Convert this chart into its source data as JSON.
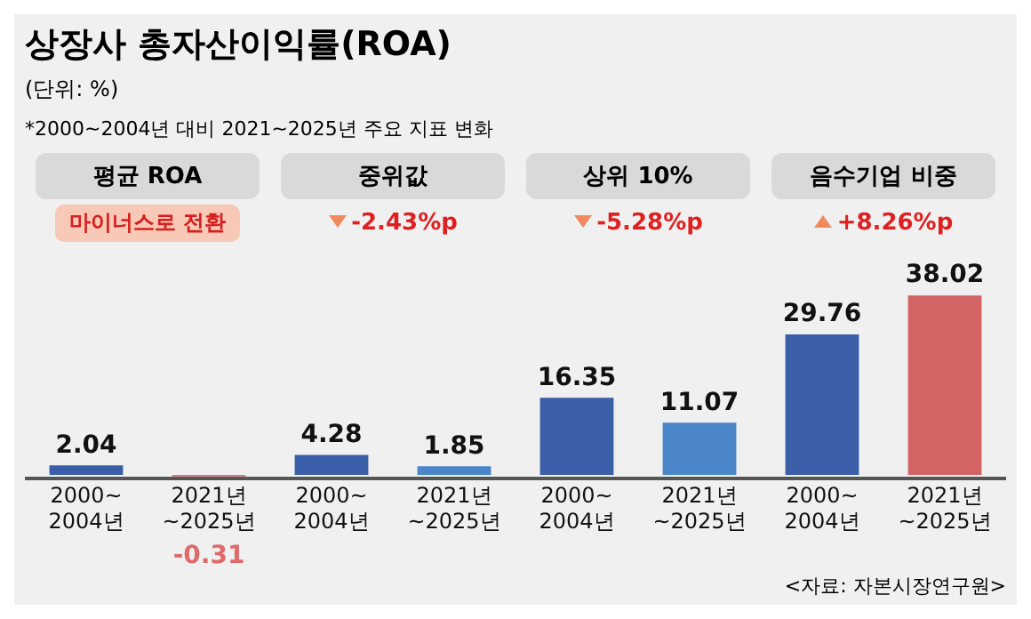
{
  "chart_data": [
    {
      "type": "other",
      "title": "상장사 총자산이익률(ROA)",
      "subtitle": "(단위: %)",
      "annotations": [
        "*2000~2004년 대비 2021~2025년 주요 지표 변화",
        "<자료: 자본시장연구원>"
      ]
    },
    {
      "type": "bar",
      "title": "평균 ROA",
      "categories": [
        "2000~ 2004년",
        "2021년 ~2025년"
      ],
      "values": [
        2.04,
        -0.31
      ],
      "colors": [
        "#3a5ea8",
        "#e06a6a"
      ],
      "data_labels": true,
      "grid": false,
      "annotations": [
        "마이너스로 전환"
      ]
    },
    {
      "type": "bar",
      "title": "중위값",
      "categories": [
        "2000~ 2004년",
        "2021년 ~2025년"
      ],
      "values": [
        4.28,
        1.85
      ],
      "colors": [
        "#3a5ea8",
        "#4a86c8"
      ],
      "data_labels": true,
      "grid": false,
      "annotations": [
        "-2.43%p"
      ]
    },
    {
      "type": "bar",
      "title": "상위 10%",
      "categories": [
        "2000~ 2004년",
        "2021년 ~2025년"
      ],
      "values": [
        16.35,
        11.07
      ],
      "colors": [
        "#3a5ea8",
        "#4a86c8"
      ],
      "data_labels": true,
      "grid": false,
      "annotations": [
        "-5.28%p"
      ]
    },
    {
      "type": "bar",
      "title": "음수기업 비중",
      "categories": [
        "2000~ 2004년",
        "2021년 ~2025년"
      ],
      "values": [
        29.76,
        38.02
      ],
      "colors": [
        "#3a5ea8",
        "#d46464"
      ],
      "data_labels": true,
      "grid": false,
      "annotations": [
        "+8.26%p"
      ]
    }
  ]
}
